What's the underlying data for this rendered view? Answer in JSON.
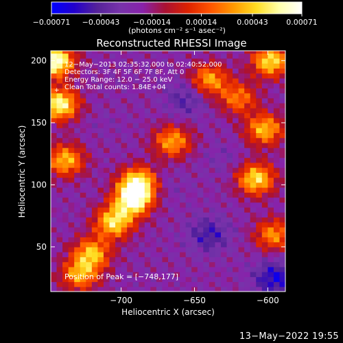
{
  "chart_data": {
    "type": "heatmap",
    "title": "Reconstructed RHESSI Image",
    "xlabel": "Heliocentric X (arcsec)",
    "ylabel": "Heliocentric Y (arcsec)",
    "xlim": [
      -748,
      -588
    ],
    "ylim": [
      14,
      208
    ],
    "x_ticks": [
      -700,
      -650,
      -600
    ],
    "x_tick_labels": [
      "−700",
      "−650",
      "−600"
    ],
    "y_ticks": [
      50,
      100,
      150,
      200
    ],
    "y_tick_labels": [
      "50",
      "100",
      "150",
      "200"
    ],
    "colorbar": {
      "range": [
        -0.00071,
        0.00071
      ],
      "ticks": [
        -0.00071,
        -0.00043,
        -0.00014,
        0.00014,
        0.00043,
        0.00071
      ],
      "tick_labels": [
        "−0.00071",
        "−0.00043",
        "−0.00014",
        "0.00014",
        "0.00043",
        "0.00071"
      ],
      "unit_label": "(photons cm⁻² s⁻¹ asec⁻²)",
      "colors": [
        "#0000ff",
        "#2200cc",
        "#552299",
        "#7733aa",
        "#8822aa",
        "#aa1133",
        "#dd2200",
        "#ff5500",
        "#ff9900",
        "#ffdd22",
        "#ffffaa",
        "#ffffff"
      ]
    },
    "annotations": [
      "12−May−2013 02:35:32.000 to 02:40:52.000",
      "Detectors: 3F 4F 5F 6F 7F 8F, Att 0",
      "Energy Range: 12.0 − 25.0 keV",
      "Clean     Total counts: 1.84E+04"
    ],
    "peak_label": "Position of Peak = [−748,177]",
    "peak": [
      -748,
      177
    ],
    "bright_regions": [
      {
        "x": -745,
        "y": 200,
        "level": 0.00071
      },
      {
        "x": -742,
        "y": 165,
        "level": 0.0006
      },
      {
        "x": -692,
        "y": 88,
        "level": 0.00065
      },
      {
        "x": -688,
        "y": 102,
        "level": 0.00055
      },
      {
        "x": -705,
        "y": 70,
        "level": 0.0005
      },
      {
        "x": -720,
        "y": 45,
        "level": 0.0004
      },
      {
        "x": -728,
        "y": 28,
        "level": 0.00035
      },
      {
        "x": -738,
        "y": 120,
        "level": 0.0004
      },
      {
        "x": -665,
        "y": 135,
        "level": 0.00035
      },
      {
        "x": -640,
        "y": 185,
        "level": 0.00035
      },
      {
        "x": -608,
        "y": 105,
        "level": 0.0005
      },
      {
        "x": -602,
        "y": 145,
        "level": 0.0004
      },
      {
        "x": -598,
        "y": 200,
        "level": 0.0005
      },
      {
        "x": -596,
        "y": 60,
        "level": 0.0003
      },
      {
        "x": -620,
        "y": 170,
        "level": 0.00025
      }
    ],
    "dim_regions": [
      {
        "x": -655,
        "y": 170,
        "level": -0.00045
      },
      {
        "x": -640,
        "y": 60,
        "level": -0.0005
      },
      {
        "x": -595,
        "y": 25,
        "level": -0.0006
      },
      {
        "x": -670,
        "y": 100,
        "level": -0.0003
      },
      {
        "x": -712,
        "y": 150,
        "level": -0.00025
      },
      {
        "x": -630,
        "y": 120,
        "level": -0.0003
      }
    ]
  },
  "footer": {
    "timestamp": "13−May−2022 19:55"
  }
}
